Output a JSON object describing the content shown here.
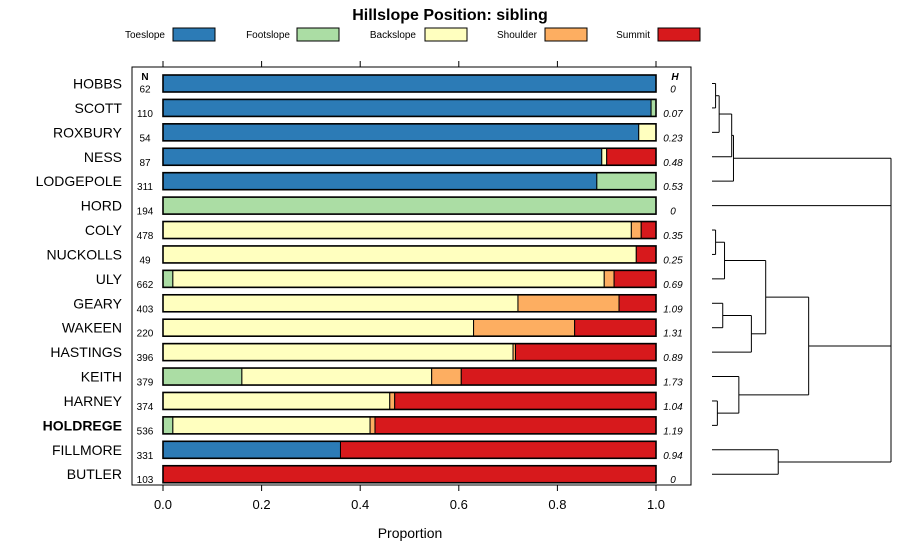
{
  "chart_data": {
    "type": "bar",
    "orientation": "horizontal-stacked",
    "title": "Hillslope Position: sibling",
    "xlabel": "Proportion",
    "ylabel": "",
    "xlim": [
      0,
      1
    ],
    "xticks": [
      "0.0",
      "0.2",
      "0.4",
      "0.6",
      "0.8",
      "1.0"
    ],
    "xtick_values": [
      0,
      0.2,
      0.4,
      0.6,
      0.8,
      1.0
    ],
    "n_header": "N",
    "h_header": "H",
    "legend": [
      {
        "name": "Toeslope",
        "color": "#2c7bb6"
      },
      {
        "name": "Footslope",
        "color": "#abdda4"
      },
      {
        "name": "Backslope",
        "color": "#ffffbf"
      },
      {
        "name": "Shoulder",
        "color": "#fdae61"
      },
      {
        "name": "Summit",
        "color": "#d7191c"
      }
    ],
    "highlight": "HOLDREGE",
    "categories": [
      "HOBBS",
      "SCOTT",
      "ROXBURY",
      "NESS",
      "LODGEPOLE",
      "HORD",
      "COLY",
      "NUCKOLLS",
      "ULY",
      "GEARY",
      "WAKEEN",
      "HASTINGS",
      "KEITH",
      "HARNEY",
      "HOLDREGE",
      "FILLMORE",
      "BUTLER"
    ],
    "n": [
      "62",
      "110",
      "54",
      "87",
      "311",
      "194",
      "478",
      "49",
      "662",
      "403",
      "220",
      "396",
      "379",
      "374",
      "536",
      "331",
      "103"
    ],
    "h": [
      "0",
      "0.07",
      "0.23",
      "0.48",
      "0.53",
      "0",
      "0.35",
      "0.25",
      "0.69",
      "1.09",
      "1.31",
      "0.89",
      "1.73",
      "1.04",
      "1.19",
      "0.94",
      "0"
    ],
    "series": [
      {
        "name": "Toeslope",
        "values": [
          1.0,
          0.99,
          0.965,
          0.89,
          0.88,
          0,
          0,
          0,
          0,
          0,
          0,
          0,
          0,
          0,
          0,
          0.36,
          0
        ]
      },
      {
        "name": "Footslope",
        "values": [
          0,
          0.01,
          0,
          0,
          0.12,
          1.0,
          0,
          0,
          0.02,
          0,
          0,
          0,
          0.16,
          0,
          0.02,
          0,
          0
        ]
      },
      {
        "name": "Backslope",
        "values": [
          0,
          0,
          0.035,
          0.01,
          0,
          0,
          0.95,
          0.96,
          0.875,
          0.72,
          0.63,
          0.71,
          0.385,
          0.46,
          0.4,
          0,
          0
        ]
      },
      {
        "name": "Shoulder",
        "values": [
          0,
          0,
          0,
          0,
          0,
          0,
          0.02,
          0,
          0.02,
          0.205,
          0.205,
          0.005,
          0.06,
          0.01,
          0.01,
          0,
          0
        ]
      },
      {
        "name": "Summit",
        "values": [
          0,
          0,
          0,
          0.1,
          0,
          0,
          0.03,
          0.04,
          0.085,
          0.075,
          0.165,
          0.285,
          0.395,
          0.53,
          0.57,
          0.64,
          1.0
        ]
      }
    ],
    "dendrogram": {
      "note": "hierarchical clustering of profiles; merge heights in relative units",
      "merges": [
        {
          "id": "c1",
          "left": "HOBBS",
          "right": "SCOTT",
          "height": 0.02
        },
        {
          "id": "c2",
          "left": "c1",
          "right": "ROXBURY",
          "height": 0.04
        },
        {
          "id": "c3",
          "left": "c2",
          "right": "NESS",
          "height": 0.11
        },
        {
          "id": "c4",
          "left": "c3",
          "right": "LODGEPOLE",
          "height": 0.12
        },
        {
          "id": "c5",
          "left": "COLY",
          "right": "NUCKOLLS",
          "height": 0.02
        },
        {
          "id": "c6",
          "left": "c5",
          "right": "ULY",
          "height": 0.07
        },
        {
          "id": "c7",
          "left": "GEARY",
          "right": "WAKEEN",
          "height": 0.06
        },
        {
          "id": "c8",
          "left": "c7",
          "right": "HASTINGS",
          "height": 0.22
        },
        {
          "id": "c9",
          "left": "c6",
          "right": "c8",
          "height": 0.3
        },
        {
          "id": "c10",
          "left": "HARNEY",
          "right": "HOLDREGE",
          "height": 0.03
        },
        {
          "id": "c11",
          "left": "KEITH",
          "right": "c10",
          "height": 0.15
        },
        {
          "id": "c12",
          "left": "c9",
          "right": "c11",
          "height": 0.54
        },
        {
          "id": "c13",
          "left": "FILLMORE",
          "right": "BUTLER",
          "height": 0.37
        },
        {
          "id": "c14",
          "left": "c12",
          "right": "c13",
          "height": 1.0
        },
        {
          "id": "c15",
          "left": "HORD",
          "right": "c14",
          "height": 1.0
        },
        {
          "id": "c16",
          "left": "c4",
          "right": "c15",
          "height": 1.0
        }
      ]
    }
  }
}
